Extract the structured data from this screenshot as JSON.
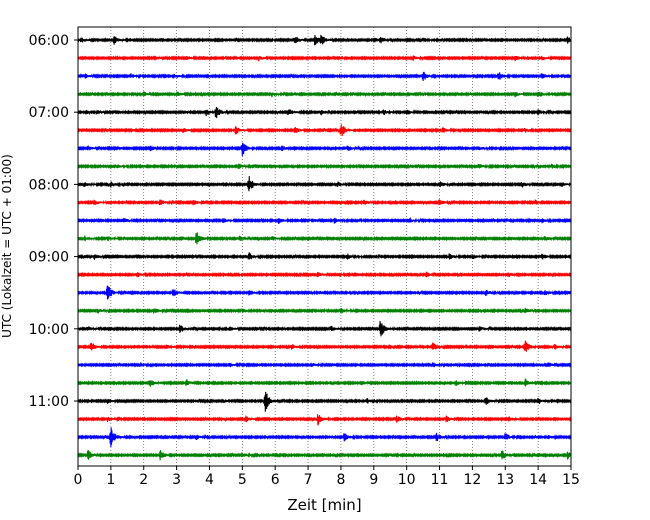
{
  "chart_data": {
    "type": "line",
    "title": "",
    "xlabel": "Zeit  [min]",
    "ylabel": "UTC (Lokalzeit = UTC + 01:00)",
    "xlim": [
      0,
      15
    ],
    "x_ticks": [
      "0",
      "1",
      "2",
      "3",
      "4",
      "5",
      "6",
      "7",
      "8",
      "9",
      "10",
      "11",
      "12",
      "13",
      "14",
      "15"
    ],
    "y_tick_labels": [
      "06:00",
      "07:00",
      "08:00",
      "09:00",
      "10:00",
      "11:00"
    ],
    "row_minutes": 15,
    "grid": "vertical dotted at each minute",
    "colors": [
      "#000000",
      "#ff0000",
      "#0000ff",
      "#008000"
    ],
    "rows": [
      {
        "start": "06:00",
        "events": [
          [
            0.1,
            0.3
          ],
          [
            1.1,
            0.5
          ],
          [
            6.6,
            0.6
          ],
          [
            7.2,
            0.7
          ],
          [
            7.4,
            0.6
          ],
          [
            9.0,
            0.3
          ],
          [
            9.2,
            0.4
          ],
          [
            14.9,
            0.4
          ]
        ]
      },
      {
        "start": "06:15",
        "events": [
          [
            2.3,
            0.3
          ],
          [
            3.3,
            0.3
          ],
          [
            5.5,
            0.3
          ],
          [
            10.2,
            0.3
          ],
          [
            13.3,
            0.3
          ],
          [
            14.1,
            0.3
          ]
        ]
      },
      {
        "start": "06:30",
        "events": [
          [
            0.2,
            0.3
          ],
          [
            1.6,
            0.3
          ],
          [
            2.9,
            0.3
          ],
          [
            10.5,
            0.6
          ],
          [
            12.8,
            0.6
          ],
          [
            14.1,
            0.4
          ]
        ]
      },
      {
        "start": "06:45",
        "events": [
          [
            2.0,
            0.3
          ],
          [
            3.0,
            0.3
          ],
          [
            5.9,
            0.3
          ],
          [
            13.3,
            0.3
          ],
          [
            14.0,
            0.5
          ]
        ]
      },
      {
        "start": "07:00",
        "events": [
          [
            0.6,
            0.3
          ],
          [
            3.9,
            0.4
          ],
          [
            4.2,
            0.8
          ],
          [
            6.4,
            0.5
          ],
          [
            7.4,
            0.3
          ],
          [
            9.3,
            0.3
          ],
          [
            10.0,
            0.4
          ],
          [
            14.0,
            0.3
          ]
        ]
      },
      {
        "start": "07:15",
        "events": [
          [
            3.2,
            0.3
          ],
          [
            4.8,
            0.5
          ],
          [
            6.6,
            0.4
          ],
          [
            8.0,
            0.9
          ],
          [
            11.1,
            0.3
          ],
          [
            13.6,
            0.3
          ]
        ]
      },
      {
        "start": "07:30",
        "events": [
          [
            0.3,
            0.3
          ],
          [
            2.2,
            0.3
          ],
          [
            5.0,
            1.0
          ],
          [
            6.2,
            0.3
          ],
          [
            8.2,
            0.4
          ],
          [
            12.2,
            0.3
          ]
        ]
      },
      {
        "start": "07:45",
        "events": [
          [
            1.2,
            0.3
          ],
          [
            4.9,
            0.3
          ],
          [
            12.2,
            0.3
          ],
          [
            14.4,
            0.3
          ]
        ]
      },
      {
        "start": "08:00",
        "events": [
          [
            0.2,
            0.3
          ],
          [
            1.0,
            0.3
          ],
          [
            5.2,
            1.1
          ],
          [
            7.9,
            0.3
          ],
          [
            11.0,
            0.4
          ],
          [
            13.5,
            0.4
          ],
          [
            14.7,
            0.3
          ]
        ]
      },
      {
        "start": "08:15",
        "events": [
          [
            0.5,
            0.3
          ],
          [
            2.5,
            0.4
          ],
          [
            3.5,
            0.3
          ],
          [
            8.7,
            0.3
          ],
          [
            11.0,
            0.4
          ],
          [
            13.9,
            0.3
          ]
        ]
      },
      {
        "start": "08:30",
        "events": [
          [
            1.4,
            0.3
          ],
          [
            4.4,
            0.3
          ],
          [
            6.1,
            0.4
          ],
          [
            7.8,
            0.3
          ],
          [
            10.1,
            0.3
          ],
          [
            14.1,
            0.3
          ]
        ]
      },
      {
        "start": "08:45",
        "events": [
          [
            0.2,
            0.3
          ],
          [
            0.9,
            0.3
          ],
          [
            3.6,
            0.9
          ],
          [
            4.9,
            0.4
          ],
          [
            5.9,
            0.3
          ],
          [
            14.2,
            0.3
          ]
        ]
      },
      {
        "start": "09:00",
        "events": [
          [
            0.5,
            0.3
          ],
          [
            5.2,
            0.5
          ],
          [
            8.2,
            0.3
          ],
          [
            11.3,
            0.4
          ],
          [
            12.0,
            0.3
          ],
          [
            14.1,
            0.4
          ]
        ]
      },
      {
        "start": "09:15",
        "events": [
          [
            1.8,
            0.3
          ],
          [
            7.3,
            0.3
          ],
          [
            10.6,
            0.3
          ],
          [
            13.1,
            0.3
          ]
        ]
      },
      {
        "start": "09:30",
        "events": [
          [
            0.9,
            1.0
          ],
          [
            2.9,
            0.5
          ],
          [
            5.2,
            0.3
          ],
          [
            12.4,
            0.4
          ],
          [
            14.2,
            0.3
          ]
        ]
      },
      {
        "start": "09:45",
        "events": [
          [
            0.6,
            0.3
          ],
          [
            2.3,
            0.4
          ],
          [
            5.0,
            0.3
          ],
          [
            8.0,
            0.3
          ],
          [
            13.6,
            0.3
          ]
        ]
      },
      {
        "start": "10:00",
        "events": [
          [
            0.3,
            0.3
          ],
          [
            3.1,
            0.5
          ],
          [
            4.6,
            0.3
          ],
          [
            7.7,
            0.3
          ],
          [
            9.2,
            1.1
          ],
          [
            12.2,
            0.3
          ]
        ]
      },
      {
        "start": "10:15",
        "events": [
          [
            0.4,
            0.6
          ],
          [
            2.7,
            0.3
          ],
          [
            6.5,
            0.3
          ],
          [
            10.8,
            0.6
          ],
          [
            13.6,
            0.8
          ],
          [
            14.5,
            0.3
          ]
        ]
      },
      {
        "start": "10:30",
        "events": [
          [
            1.9,
            0.3
          ],
          [
            4.6,
            0.3
          ],
          [
            7.1,
            0.3
          ],
          [
            10.8,
            0.3
          ],
          [
            14.3,
            0.3
          ]
        ]
      },
      {
        "start": "10:45",
        "events": [
          [
            2.2,
            0.4
          ],
          [
            3.3,
            0.4
          ],
          [
            8.6,
            0.3
          ],
          [
            11.5,
            0.3
          ],
          [
            13.6,
            0.5
          ]
        ]
      },
      {
        "start": "11:00",
        "events": [
          [
            0.9,
            0.3
          ],
          [
            5.7,
            1.3
          ],
          [
            8.8,
            0.3
          ],
          [
            12.4,
            0.5
          ],
          [
            14.0,
            0.4
          ]
        ]
      },
      {
        "start": "11:15",
        "events": [
          [
            0.9,
            0.3
          ],
          [
            5.1,
            0.4
          ],
          [
            7.3,
            0.7
          ],
          [
            9.7,
            0.4
          ],
          [
            11.2,
            0.4
          ],
          [
            13.1,
            0.3
          ]
        ]
      },
      {
        "start": "11:30",
        "events": [
          [
            1.0,
            1.2
          ],
          [
            3.6,
            0.3
          ],
          [
            8.1,
            0.5
          ],
          [
            10.9,
            0.6
          ],
          [
            13.0,
            0.5
          ],
          [
            14.3,
            0.3
          ]
        ]
      },
      {
        "start": "11:45",
        "events": [
          [
            0.3,
            0.6
          ],
          [
            2.5,
            0.6
          ],
          [
            5.0,
            0.3
          ],
          [
            12.9,
            0.6
          ],
          [
            14.9,
            0.5
          ]
        ]
      }
    ]
  }
}
